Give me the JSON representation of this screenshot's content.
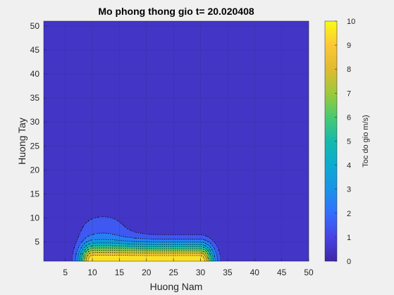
{
  "title": "Mo phong thong gio t= 20.020408",
  "colors": {
    "figure_bg": "#f0f0f0",
    "colormap": "parula",
    "grid": "#333366",
    "contour_lines": "dotted black"
  },
  "chart_data": {
    "type": "heatmap",
    "style": "filled contour (contourf) with dotted contour lines",
    "title": "Mo phong thong gio t= 20.020408",
    "xlabel": "Huong Nam",
    "ylabel": "Huong Tay",
    "xlim": [
      1,
      50
    ],
    "ylim": [
      1,
      51
    ],
    "xticks": [
      5,
      10,
      15,
      20,
      25,
      30,
      35,
      40,
      45,
      50
    ],
    "yticks": [
      5,
      10,
      15,
      20,
      25,
      30,
      35,
      40,
      45,
      50
    ],
    "grid": true,
    "colorbar": {
      "label": "Toc do gio m/s)",
      "limits": [
        0,
        10
      ],
      "ticks": [
        0,
        1,
        2,
        3,
        4,
        5,
        6,
        7,
        8,
        9,
        10
      ],
      "placement": "right"
    },
    "contour_levels": [
      1,
      2,
      3,
      4,
      5,
      6,
      7,
      8,
      9
    ],
    "source": {
      "x_range": [
        10,
        30
      ],
      "y": 1,
      "peak_speed": 10
    },
    "plume": {
      "core_x_range": [
        10,
        30
      ],
      "lobe_center": [
        12,
        8
      ],
      "max_extent_y": 15,
      "tail_extent_x": 34
    }
  }
}
